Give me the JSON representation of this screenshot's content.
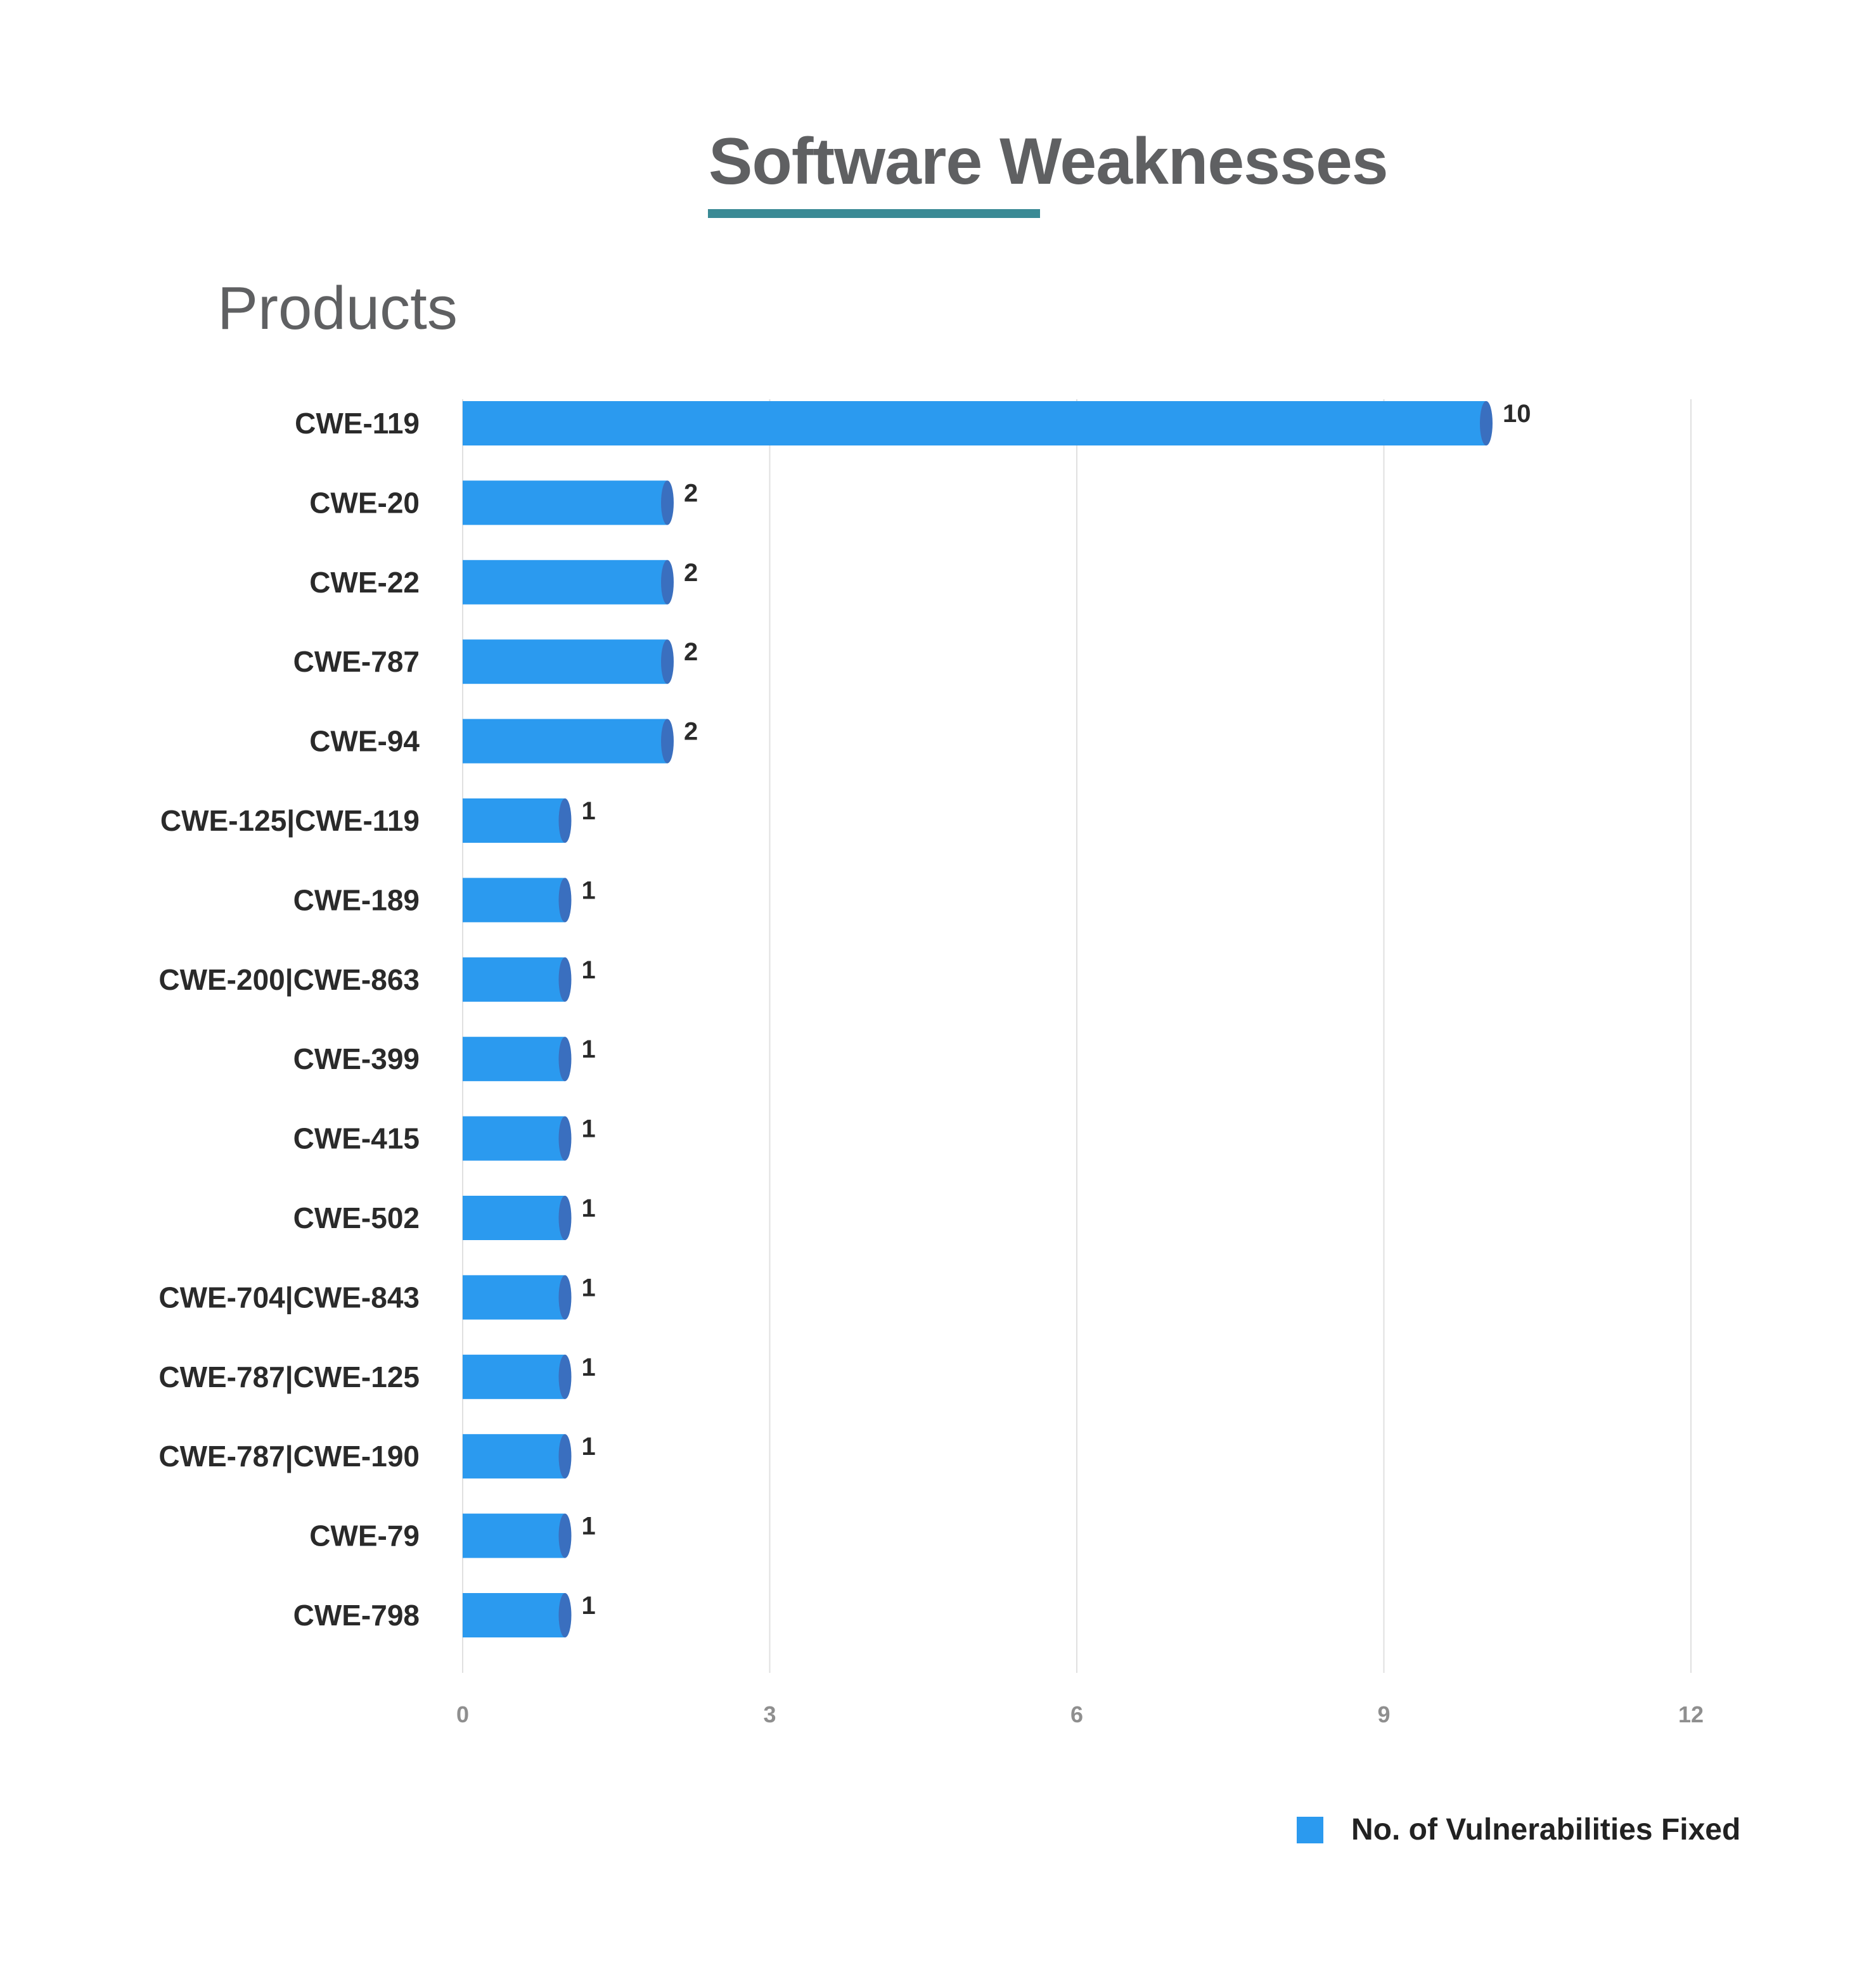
{
  "header": {
    "title": "Software Weaknesses",
    "section": "Products"
  },
  "colors": {
    "bar": "#2b9aef",
    "bar_cap": "#3a6fbf",
    "title_underline": "#3a8a95",
    "gridline": "#e0e0e0",
    "axis_tick": "#8f8f8f"
  },
  "chart_data": {
    "type": "bar",
    "orientation": "horizontal",
    "title": "Software Weaknesses",
    "subtitle": "Products",
    "xlabel": "",
    "ylabel": "",
    "xlim": [
      0,
      12
    ],
    "x_ticks": [
      0,
      3,
      6,
      9,
      12
    ],
    "grid": "vertical",
    "legend_position": "bottom-right",
    "categories": [
      "CWE-119",
      "CWE-20",
      "CWE-22",
      "CWE-787",
      "CWE-94",
      "CWE-125|CWE-119",
      "CWE-189",
      "CWE-200|CWE-863",
      "CWE-399",
      "CWE-415",
      "CWE-502",
      "CWE-704|CWE-843",
      "CWE-787|CWE-125",
      "CWE-787|CWE-190",
      "CWE-79",
      "CWE-798"
    ],
    "series": [
      {
        "name": "No. of Vulnerabilities Fixed",
        "values": [
          10,
          2,
          2,
          2,
          2,
          1,
          1,
          1,
          1,
          1,
          1,
          1,
          1,
          1,
          1,
          1
        ]
      }
    ]
  }
}
